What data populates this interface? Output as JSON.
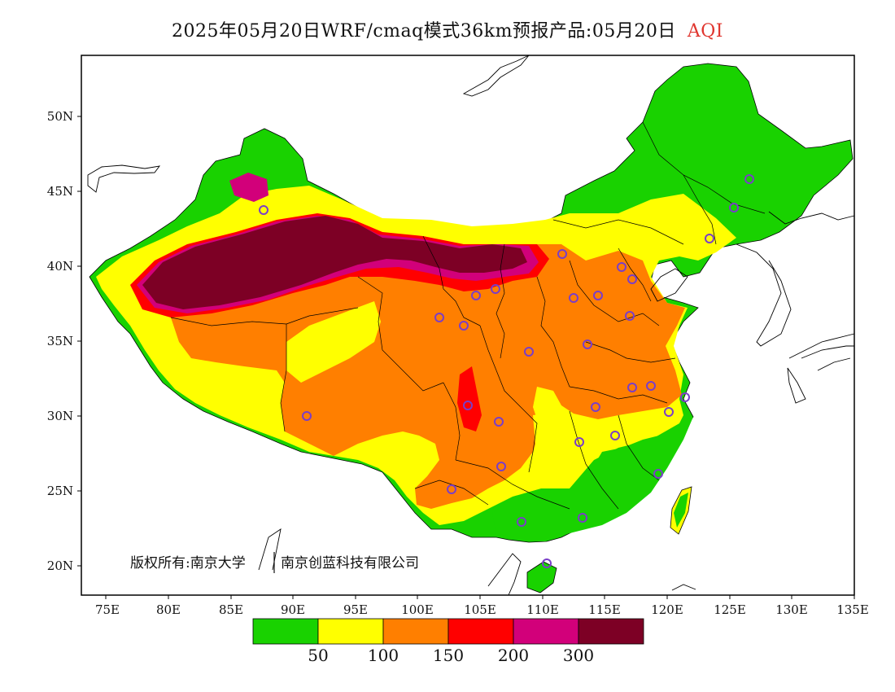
{
  "title": {
    "main": "2025年05月20日WRF/cmaq模式36km预报产品:05月20日",
    "product": "AQI"
  },
  "axes": {
    "lat_labels": [
      "50N",
      "45N",
      "40N",
      "35N",
      "30N",
      "25N",
      "20N"
    ],
    "lon_labels": [
      "75E",
      "80E",
      "85E",
      "90E",
      "95E",
      "100E",
      "105E",
      "110E",
      "115E",
      "120E",
      "125E",
      "130E",
      "135E"
    ]
  },
  "copyright": {
    "text_left": "版权所有:南京大学",
    "text_right": "南京创蓝科技有限公司"
  },
  "legend": {
    "colors": [
      "#19d200",
      "#ffff00",
      "#ff7f00",
      "#ff0000",
      "#d2007a",
      "#7d0025"
    ],
    "labels": [
      "50",
      "100",
      "150",
      "200",
      "300"
    ]
  },
  "colors": {
    "good": "#19d200",
    "moderate": "#ffff00",
    "unhealthy_sensitive": "#ff7f00",
    "unhealthy": "#ff0000",
    "very_unhealthy": "#d2007a",
    "hazardous": "#7d0025",
    "station_marker": "#7a3ec8"
  }
}
